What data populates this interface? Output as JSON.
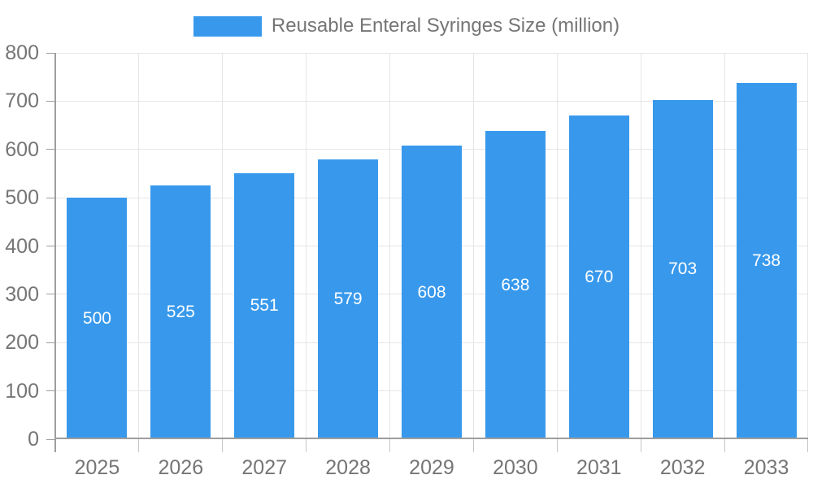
{
  "legend": {
    "label": "Reusable Enteral Syringes Size (million)"
  },
  "chart_data": {
    "type": "bar",
    "title": "Reusable Enteral Syringes Size (million)",
    "categories": [
      "2025",
      "2026",
      "2027",
      "2028",
      "2029",
      "2030",
      "2031",
      "2032",
      "2033"
    ],
    "values": [
      500,
      525,
      551,
      579,
      608,
      638,
      670,
      703,
      738
    ],
    "series_name": "Reusable Enteral Syringes Size (million)",
    "xlabel": "",
    "ylabel": "",
    "ylim": [
      0,
      800
    ],
    "ytick_interval": 100,
    "yticks": [
      0,
      100,
      200,
      300,
      400,
      500,
      600,
      700,
      800
    ],
    "legend_position": "top",
    "grid": true,
    "value_labels": "inside-center",
    "colors": {
      "bar": "#3899EC",
      "axis": "#9E9E9E",
      "grid": "#E6E6E6",
      "tick": "#C6C6C6",
      "text": "#757575",
      "value_label": "#FFFFFF"
    }
  }
}
